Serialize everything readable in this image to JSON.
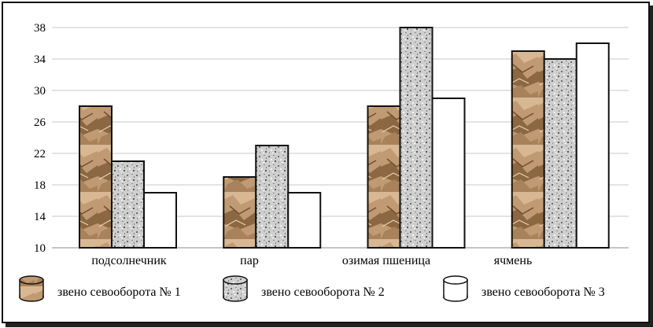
{
  "chart_data": {
    "type": "bar",
    "categories": [
      "подсолнечник",
      "пар",
      "озимая пшеница",
      "ячмень"
    ],
    "series": [
      {
        "name": "звено севооборота № 1",
        "values": [
          28,
          19,
          28,
          35
        ],
        "texture": "crumpled-paper",
        "color": "#b8916a"
      },
      {
        "name": "звено севооборота № 2",
        "values": [
          21,
          23,
          38,
          34
        ],
        "texture": "granite",
        "color": "#c9c9c9"
      },
      {
        "name": "звено севооборота № 3",
        "values": [
          17,
          17,
          29,
          36
        ],
        "texture": "metal-cylinder",
        "color": "#9a9a9a"
      }
    ],
    "yticks": [
      10,
      14,
      18,
      22,
      26,
      30,
      34,
      38
    ],
    "ylim": [
      10,
      40
    ],
    "grid": true,
    "legend_position": "bottom"
  }
}
